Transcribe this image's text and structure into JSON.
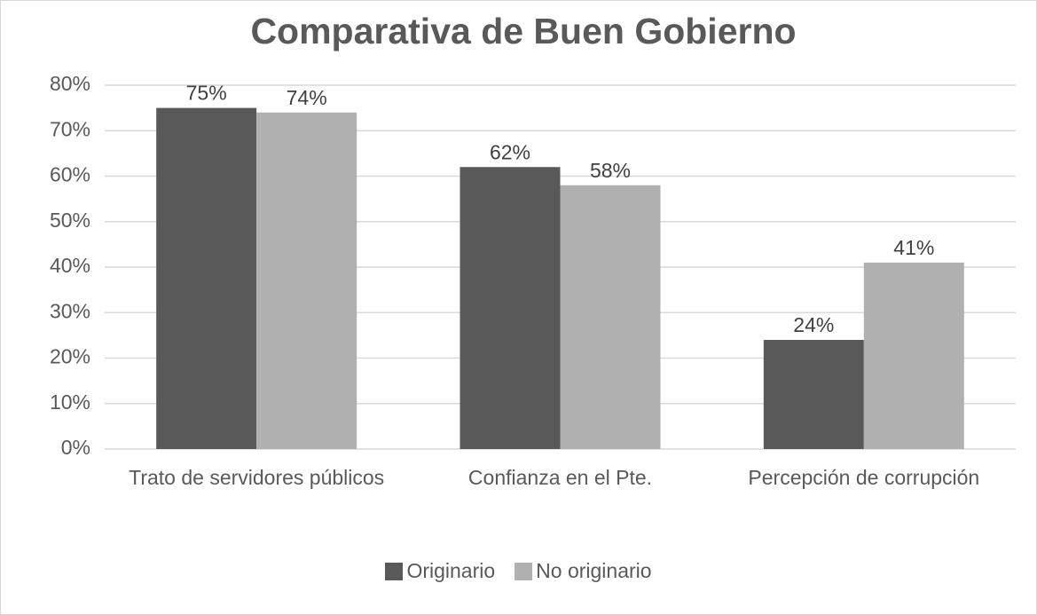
{
  "chart_data": {
    "type": "bar",
    "title": "Comparativa de Buen Gobierno",
    "categories": [
      "Trato de servidores públicos",
      "Confianza en el Pte.",
      "Percepción de corrupción"
    ],
    "series": [
      {
        "name": "Originario",
        "color": "#595959",
        "values": [
          75,
          62,
          24
        ],
        "value_labels": [
          "75%",
          "62%",
          "24%"
        ]
      },
      {
        "name": "No originario",
        "color": "#b0b0b0",
        "values": [
          74,
          58,
          41
        ],
        "value_labels": [
          "74%",
          "58%",
          "41%"
        ]
      }
    ],
    "ylim": [
      0,
      80
    ],
    "yticks": [
      {
        "value": 0,
        "label": "0%"
      },
      {
        "value": 10,
        "label": "10%"
      },
      {
        "value": 20,
        "label": "20%"
      },
      {
        "value": 30,
        "label": "30%"
      },
      {
        "value": 40,
        "label": "40%"
      },
      {
        "value": 50,
        "label": "50%"
      },
      {
        "value": 60,
        "label": "60%"
      },
      {
        "value": 70,
        "label": "70%"
      },
      {
        "value": 80,
        "label": "80%"
      }
    ],
    "grid": true,
    "legend": "bottom"
  }
}
